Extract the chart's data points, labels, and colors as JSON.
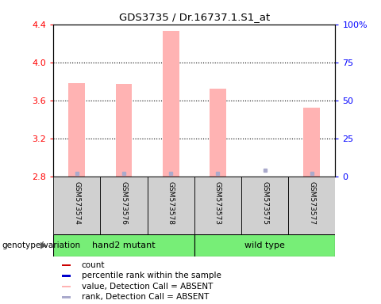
{
  "title": "GDS3735 / Dr.16737.1.S1_at",
  "samples": [
    "GSM573574",
    "GSM573576",
    "GSM573578",
    "GSM573573",
    "GSM573575",
    "GSM573577"
  ],
  "bar_values": [
    3.78,
    3.77,
    4.33,
    3.72,
    2.8,
    3.52
  ],
  "rank_values_pct": [
    2,
    2,
    2,
    2,
    4,
    2
  ],
  "absent_flags": [
    true,
    true,
    true,
    true,
    true,
    true
  ],
  "ylim": [
    2.8,
    4.4
  ],
  "yticks_left": [
    2.8,
    3.2,
    3.6,
    4.0,
    4.4
  ],
  "yticks_right": [
    0,
    25,
    50,
    75,
    100
  ],
  "bar_color_absent": "#ffb3b3",
  "bar_color_present": "#ff4444",
  "rank_color_absent": "#aaaacc",
  "rank_color_present": "#0000cc",
  "bar_width": 0.35,
  "group_info": [
    {
      "label": "hand2 mutant",
      "start": 0,
      "end": 3,
      "color": "#77ee77"
    },
    {
      "label": "wild type",
      "start": 3,
      "end": 6,
      "color": "#77ee77"
    }
  ],
  "legend_items": [
    {
      "label": "count",
      "color": "#cc0000"
    },
    {
      "label": "percentile rank within the sample",
      "color": "#0000cc"
    },
    {
      "label": "value, Detection Call = ABSENT",
      "color": "#ffb3b3"
    },
    {
      "label": "rank, Detection Call = ABSENT",
      "color": "#aaaacc"
    }
  ],
  "geno_label": "genotype/variation"
}
